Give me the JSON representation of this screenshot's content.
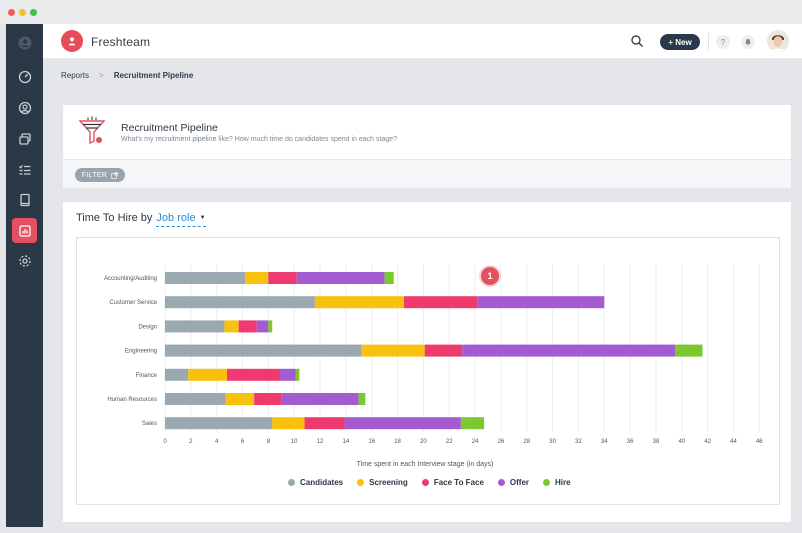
{
  "app": {
    "brand": "Freshteam"
  },
  "topbar": {
    "new_label": "+ New",
    "help_label": "?"
  },
  "sidebar": {
    "items": [
      {
        "icon": "dashboard-icon",
        "active": false
      },
      {
        "icon": "candidates-icon",
        "active": false
      },
      {
        "icon": "jobs-icon",
        "active": false
      },
      {
        "icon": "tasks-icon",
        "active": false
      },
      {
        "icon": "documents-icon",
        "active": false
      },
      {
        "icon": "reports-icon",
        "active": true
      },
      {
        "icon": "settings-icon",
        "active": false
      }
    ]
  },
  "breadcrumb": {
    "parent": "Reports",
    "separator": ">",
    "current": "Recruitment Pipeline"
  },
  "report_header": {
    "title": "Recruitment Pipeline",
    "subtitle": "What's my recruitment pipeline like? How much time do candidates spend in each stage?",
    "filter_label": "FILTER"
  },
  "chart_section": {
    "heading": "Time To Hire by",
    "group_by": "Job role",
    "badge": "1"
  },
  "colors": {
    "accent": "#e2515f",
    "link": "#2b8fd6"
  },
  "chart_data": {
    "type": "bar",
    "orientation": "horizontal",
    "stacked": true,
    "categories": [
      "Accounting/Auditing",
      "Customer Service",
      "Design",
      "Engineering",
      "Finance",
      "Human Resources",
      "Sales"
    ],
    "series": [
      {
        "name": "Candidates",
        "color": "#9aa8b0",
        "values": [
          6.2,
          11.6,
          4.6,
          15.2,
          1.8,
          4.7,
          8.3
        ]
      },
      {
        "name": "Screening",
        "color": "#f7c10e",
        "values": [
          1.8,
          6.9,
          1.1,
          4.9,
          3.0,
          2.2,
          2.5
        ]
      },
      {
        "name": "Face To Face",
        "color": "#ee3a6e",
        "values": [
          2.2,
          5.7,
          1.4,
          2.9,
          4.1,
          2.1,
          3.1
        ]
      },
      {
        "name": "Offer",
        "color": "#a45ad0",
        "values": [
          6.8,
          9.8,
          0.9,
          16.5,
          1.2,
          6.0,
          9.0
        ]
      },
      {
        "name": "Hire",
        "color": "#7cc82f",
        "values": [
          0.7,
          0.0,
          0.3,
          2.1,
          0.3,
          0.5,
          1.8
        ]
      }
    ],
    "xlabel": "Time spent in each Interview stage (in days)",
    "ylabel": "",
    "xlim": [
      0,
      46
    ],
    "xticks": [
      "0",
      "2",
      "4",
      "6",
      "8",
      "10",
      "12",
      "14",
      "16",
      "18",
      "20",
      "22",
      "24",
      "26",
      "28",
      "30",
      "32",
      "34",
      "36",
      "38",
      "40",
      "42",
      "44",
      "46"
    ],
    "grid": true,
    "legend": "bottom"
  }
}
